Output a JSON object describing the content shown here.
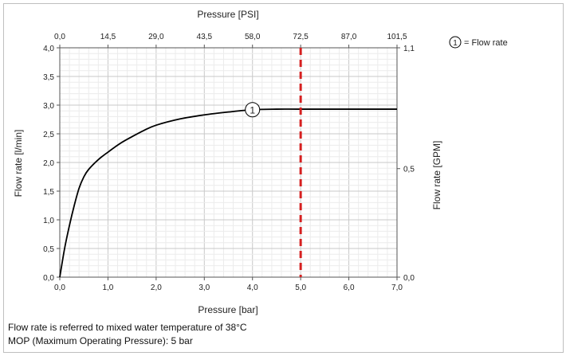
{
  "chart_data": {
    "type": "line",
    "x_bottom": {
      "label": "Pressure [bar]",
      "min": 0,
      "max": 7,
      "ticks": [
        "0,0",
        "1,0",
        "2,0",
        "3,0",
        "4,0",
        "5,0",
        "6,0",
        "7,0"
      ]
    },
    "x_top": {
      "label": "Pressure [PSI]",
      "ticks": [
        "0,0",
        "14,5",
        "29,0",
        "43,5",
        "58,0",
        "72,5",
        "87,0",
        "101,5"
      ]
    },
    "y_left": {
      "label": "Flow rate [l/min]",
      "min": 0,
      "max": 4,
      "ticks": [
        "0,0",
        "0,5",
        "1,0",
        "1,5",
        "2,0",
        "2,5",
        "3,0",
        "3,5",
        "4,0"
      ]
    },
    "y_right": {
      "label": "Flow rate [GPM]",
      "ticks": [
        "0,0",
        "0,5",
        "1,1"
      ]
    },
    "series": [
      {
        "name": "Flow rate",
        "marker": "1",
        "color": "#000000",
        "points": [
          [
            0.0,
            0.0
          ],
          [
            0.1,
            0.5
          ],
          [
            0.2,
            0.9
          ],
          [
            0.3,
            1.25
          ],
          [
            0.4,
            1.55
          ],
          [
            0.5,
            1.75
          ],
          [
            0.6,
            1.88
          ],
          [
            0.8,
            2.05
          ],
          [
            1.0,
            2.18
          ],
          [
            1.25,
            2.33
          ],
          [
            1.5,
            2.45
          ],
          [
            1.75,
            2.56
          ],
          [
            2.0,
            2.65
          ],
          [
            2.5,
            2.76
          ],
          [
            3.0,
            2.83
          ],
          [
            3.5,
            2.88
          ],
          [
            4.0,
            2.92
          ],
          [
            4.5,
            2.93
          ],
          [
            5.0,
            2.93
          ],
          [
            6.0,
            2.93
          ],
          [
            7.0,
            2.93
          ]
        ]
      }
    ],
    "mop_line": {
      "x": 5.0,
      "color": "#d62020"
    },
    "legend": {
      "symbol": "1",
      "text": "= Flow rate",
      "position": "top-right"
    },
    "grid": true,
    "notes": [
      "Flow rate is referred to mixed water temperature of 38°C",
      "MOP (Maximum Operating Pressure): 5 bar"
    ]
  }
}
